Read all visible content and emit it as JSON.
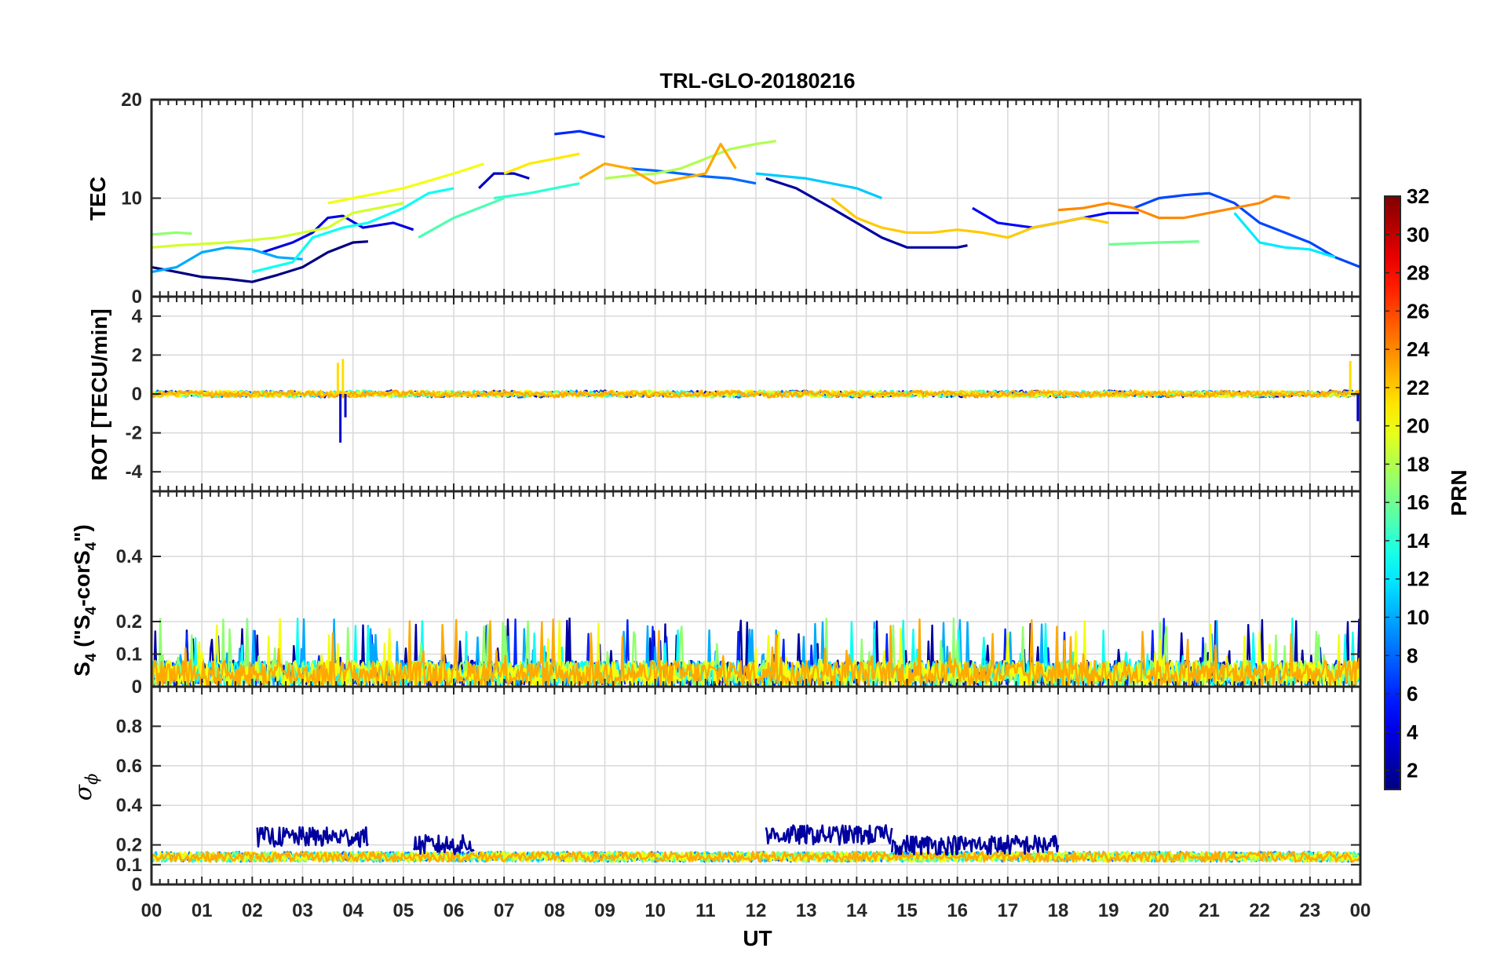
{
  "chart_data": {
    "type": "line",
    "title": "TRL-GLO-20180216",
    "xlabel": "UT",
    "x_tick_labels": [
      "00",
      "01",
      "02",
      "03",
      "04",
      "05",
      "06",
      "07",
      "08",
      "09",
      "10",
      "11",
      "12",
      "13",
      "14",
      "15",
      "16",
      "17",
      "18",
      "19",
      "20",
      "21",
      "22",
      "23",
      "00"
    ],
    "xlim_hours": [
      0,
      24
    ],
    "panels": [
      {
        "name": "TEC",
        "ylabel": "TEC",
        "ylim": [
          0,
          20
        ],
        "y_ticks": [
          0,
          10,
          20
        ],
        "y_tick_labels": [
          "0",
          "10",
          "20"
        ],
        "grid": true,
        "series": [
          {
            "prn": 1,
            "points": [
              [
                0,
                3.0
              ],
              [
                0.5,
                2.5
              ],
              [
                1,
                2.0
              ],
              [
                1.5,
                1.8
              ],
              [
                2,
                1.5
              ],
              [
                2.5,
                2.2
              ],
              [
                3,
                3.0
              ],
              [
                3.5,
                4.5
              ],
              [
                4,
                5.5
              ],
              [
                4.3,
                5.6
              ]
            ]
          },
          {
            "prn": 2,
            "points": [
              [
                12.2,
                12.0
              ],
              [
                12.8,
                11.0
              ],
              [
                13.5,
                9.0
              ],
              [
                14,
                7.5
              ],
              [
                14.5,
                6.0
              ],
              [
                15,
                5.0
              ],
              [
                15.5,
                5.0
              ],
              [
                16,
                5.0
              ],
              [
                16.2,
                5.2
              ]
            ]
          },
          {
            "prn": 3,
            "points": [
              [
                6.5,
                11.0
              ],
              [
                6.8,
                12.5
              ],
              [
                7.2,
                12.5
              ],
              [
                7.5,
                12.0
              ]
            ]
          },
          {
            "prn": 4,
            "points": [
              [
                2.2,
                4.5
              ],
              [
                2.8,
                5.5
              ],
              [
                3.2,
                6.5
              ],
              [
                3.5,
                8.0
              ],
              [
                3.8,
                8.2
              ],
              [
                4.2,
                7.0
              ],
              [
                4.8,
                7.5
              ],
              [
                5.2,
                6.8
              ]
            ]
          },
          {
            "prn": 5,
            "points": [
              [
                16.3,
                9.0
              ],
              [
                16.8,
                7.5
              ],
              [
                17.5,
                7.0
              ],
              [
                18,
                7.5
              ],
              [
                18.5,
                8.0
              ],
              [
                19,
                8.5
              ],
              [
                19.6,
                8.5
              ]
            ]
          },
          {
            "prn": 6,
            "points": [
              [
                8.0,
                16.5
              ],
              [
                8.5,
                16.8
              ],
              [
                9.0,
                16.2
              ]
            ]
          },
          {
            "prn": 7,
            "points": [
              [
                19.5,
                9.0
              ],
              [
                20,
                10.0
              ],
              [
                20.5,
                10.3
              ],
              [
                21,
                10.5
              ],
              [
                21.5,
                9.5
              ],
              [
                22,
                7.5
              ],
              [
                22.5,
                6.5
              ],
              [
                23,
                5.5
              ],
              [
                23.5,
                4.0
              ],
              [
                24,
                3.0
              ]
            ]
          },
          {
            "prn": 8,
            "points": [
              [
                9.5,
                13.0
              ],
              [
                10,
                12.8
              ],
              [
                10.5,
                12.5
              ],
              [
                11,
                12.2
              ],
              [
                11.5,
                12.0
              ],
              [
                12,
                11.5
              ]
            ]
          },
          {
            "prn": 10,
            "points": [
              [
                0,
                2.5
              ],
              [
                0.5,
                3.0
              ],
              [
                1,
                4.5
              ],
              [
                1.5,
                5.0
              ],
              [
                2,
                4.8
              ],
              [
                2.5,
                4.0
              ],
              [
                3,
                3.8
              ]
            ]
          },
          {
            "prn": 11,
            "points": [
              [
                12.0,
                12.5
              ],
              [
                13.0,
                12.0
              ],
              [
                14.0,
                11.0
              ],
              [
                14.5,
                10.0
              ]
            ]
          },
          {
            "prn": 12,
            "points": [
              [
                21.5,
                8.5
              ],
              [
                22,
                5.5
              ],
              [
                22.5,
                5.0
              ],
              [
                23,
                4.8
              ],
              [
                23.5,
                4.0
              ]
            ]
          },
          {
            "prn": 13,
            "points": [
              [
                2.0,
                2.5
              ],
              [
                2.8,
                3.5
              ],
              [
                3.2,
                6.0
              ],
              [
                3.8,
                7.0
              ],
              [
                4.3,
                7.5
              ],
              [
                5.0,
                9.0
              ],
              [
                5.5,
                10.5
              ],
              [
                6.0,
                11.0
              ]
            ]
          },
          {
            "prn": 14,
            "points": [
              [
                6.8,
                10.0
              ],
              [
                7.5,
                10.5
              ],
              [
                8.0,
                11.0
              ],
              [
                8.5,
                11.5
              ]
            ]
          },
          {
            "prn": 15,
            "points": [
              [
                5.3,
                6.0
              ],
              [
                6.0,
                8.0
              ],
              [
                6.5,
                9.0
              ],
              [
                7.0,
                10.0
              ]
            ]
          },
          {
            "prn": 16,
            "points": [
              [
                19.0,
                5.3
              ],
              [
                19.5,
                5.4
              ],
              [
                20,
                5.5
              ],
              [
                20.8,
                5.6
              ]
            ]
          },
          {
            "prn": 17,
            "points": [
              [
                0,
                6.3
              ],
              [
                0.5,
                6.5
              ],
              [
                0.8,
                6.4
              ]
            ]
          },
          {
            "prn": 18,
            "points": [
              [
                9.0,
                12.0
              ],
              [
                9.5,
                12.3
              ],
              [
                10,
                12.5
              ],
              [
                10.5,
                13.0
              ],
              [
                11,
                14.0
              ],
              [
                11.5,
                15.0
              ],
              [
                12,
                15.5
              ],
              [
                12.4,
                15.8
              ]
            ]
          },
          {
            "prn": 19,
            "points": [
              [
                0,
                5.0
              ],
              [
                0.5,
                5.2
              ],
              [
                1.5,
                5.5
              ],
              [
                2.5,
                6.0
              ],
              [
                3.5,
                7.0
              ],
              [
                4.0,
                8.5
              ],
              [
                4.5,
                9.0
              ],
              [
                5.0,
                9.5
              ]
            ]
          },
          {
            "prn": 20,
            "points": [
              [
                3.5,
                9.5
              ],
              [
                4.0,
                10.0
              ],
              [
                5.0,
                11.0
              ],
              [
                6.0,
                12.5
              ],
              [
                6.6,
                13.5
              ]
            ]
          },
          {
            "prn": 21,
            "points": [
              [
                7.0,
                12.5
              ],
              [
                7.5,
                13.5
              ],
              [
                8.0,
                14.0
              ],
              [
                8.5,
                14.5
              ]
            ]
          },
          {
            "prn": 22,
            "points": [
              [
                13.5,
                10.0
              ],
              [
                14,
                8.0
              ],
              [
                14.5,
                7.0
              ],
              [
                15,
                6.5
              ],
              [
                15.5,
                6.5
              ],
              [
                16,
                6.8
              ],
              [
                16.5,
                6.5
              ],
              [
                17,
                6.0
              ],
              [
                17.5,
                7.0
              ],
              [
                18,
                7.5
              ],
              [
                18.5,
                8.0
              ],
              [
                19,
                7.5
              ]
            ]
          },
          {
            "prn": 23,
            "points": [
              [
                8.5,
                12.0
              ],
              [
                9.0,
                13.5
              ],
              [
                9.5,
                13.0
              ],
              [
                10,
                11.5
              ],
              [
                10.5,
                12.0
              ],
              [
                11,
                12.5
              ],
              [
                11.3,
                15.5
              ],
              [
                11.6,
                13.0
              ]
            ]
          },
          {
            "prn": 24,
            "points": [
              [
                18.0,
                8.8
              ],
              [
                18.5,
                9.0
              ],
              [
                19.0,
                9.5
              ],
              [
                19.5,
                9.0
              ],
              [
                20,
                8.0
              ],
              [
                20.5,
                8.0
              ],
              [
                21,
                8.5
              ],
              [
                21.5,
                9.0
              ],
              [
                22,
                9.5
              ],
              [
                22.3,
                10.2
              ],
              [
                22.6,
                10.0
              ]
            ]
          }
        ]
      },
      {
        "name": "ROT",
        "ylabel": "ROT [TECU/min]",
        "ylim": [
          -5,
          5
        ],
        "y_ticks": [
          -4,
          -2,
          0,
          2,
          4
        ],
        "y_tick_labels": [
          "-4",
          "-2",
          "0",
          "2",
          "4"
        ],
        "grid": true,
        "baseline": 0,
        "typical_amplitude": 0.15,
        "spikes": [
          [
            3.7,
            1.6
          ],
          [
            3.75,
            -2.5
          ],
          [
            3.8,
            1.8
          ],
          [
            3.85,
            -1.2
          ],
          [
            23.8,
            1.7
          ],
          [
            23.95,
            -1.4
          ]
        ]
      },
      {
        "name": "S4",
        "ylabel_main": "S",
        "ylabel_sub1": "4",
        "ylabel_paren": " (\"S",
        "ylabel_sub2": "4",
        "ylabel_mid": "-corS",
        "ylabel_sub3": "4",
        "ylabel_end": "\")",
        "ylim": [
          0,
          0.6
        ],
        "y_ticks": [
          0,
          0.1,
          0.2,
          0.4
        ],
        "y_tick_labels": [
          "0",
          "0.1",
          "0.2",
          "0.4"
        ],
        "grid": true,
        "typical_level": 0.05,
        "peak_level": 0.21
      },
      {
        "name": "sigma_phi",
        "ylabel_symbol": "σ",
        "ylabel_subscript": "ϕ",
        "ylim": [
          0,
          1
        ],
        "y_ticks": [
          0,
          0.1,
          0.2,
          0.4,
          0.6,
          0.8
        ],
        "y_tick_labels": [
          "0",
          "0.1",
          "0.2",
          "0.4",
          "0.6",
          "0.8"
        ],
        "grid": true,
        "typical_level": 0.14,
        "elevated_intervals": [
          [
            2.1,
            4.3,
            0.24
          ],
          [
            5.2,
            6.4,
            0.2
          ],
          [
            12.2,
            14.7,
            0.25
          ],
          [
            14.7,
            18.0,
            0.2
          ]
        ]
      }
    ],
    "colorbar": {
      "label": "PRN",
      "colormap": "jet",
      "range": [
        1,
        32
      ],
      "ticks": [
        2,
        4,
        6,
        8,
        10,
        12,
        14,
        16,
        18,
        20,
        22,
        24,
        26,
        28,
        30,
        32
      ],
      "tick_labels": [
        "2",
        "4",
        "6",
        "8",
        "10",
        "12",
        "14",
        "16",
        "18",
        "20",
        "22",
        "24",
        "26",
        "28",
        "30",
        "32"
      ]
    }
  }
}
